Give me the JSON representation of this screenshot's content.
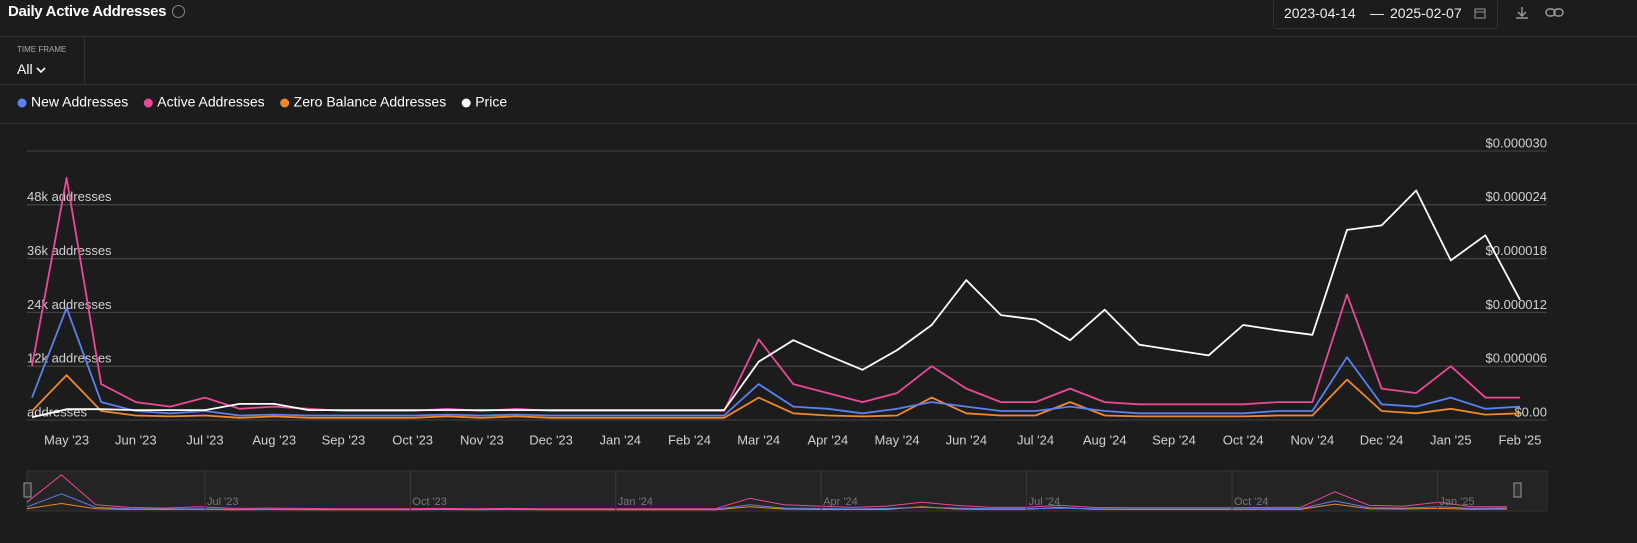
{
  "header": {
    "title": "Daily Active Addresses",
    "date_from": "2023-04-14",
    "date_sep": "—",
    "date_to": "2025-02-07"
  },
  "time_frame": {
    "label": "TIME FRAME",
    "value": "All"
  },
  "chart_data": {
    "type": "line",
    "categories": [
      null,
      "May '23",
      null,
      "Jun '23",
      null,
      "Jul '23",
      null,
      "Aug '23",
      null,
      "Sep '23",
      null,
      "Oct '23",
      null,
      "Nov '23",
      null,
      "Dec '23",
      null,
      "Jan '24",
      null,
      "Feb '24",
      null,
      "Mar '24",
      null,
      "Apr '24",
      null,
      "May '24",
      null,
      "Jun '24",
      null,
      "Jul '24",
      null,
      "Aug '24",
      null,
      "Sep '24",
      null,
      "Oct '24",
      null,
      "Nov '24",
      null,
      "Dec '24",
      null,
      "Jan '25",
      null,
      "Feb '25"
    ],
    "series": [
      {
        "name": "New Addresses",
        "color": "#5b80f0",
        "values": [
          5000,
          25000,
          4000,
          2000,
          1500,
          2000,
          1000,
          1200,
          1000,
          1000,
          1000,
          1000,
          1200,
          1000,
          1200,
          1000,
          1000,
          1000,
          1000,
          1000,
          1000,
          8000,
          3000,
          2500,
          1500,
          2500,
          4000,
          3000,
          2000,
          2000,
          3000,
          2000,
          1500,
          1500,
          1500,
          1500,
          2000,
          2000,
          14000,
          3500,
          3000,
          5000,
          2500,
          3000
        ]
      },
      {
        "name": "Active Addresses",
        "color": "#ec4899",
        "values": [
          12000,
          54000,
          8000,
          4000,
          3000,
          5000,
          2500,
          3000,
          2500,
          2000,
          2000,
          2000,
          2500,
          2000,
          2500,
          2000,
          2000,
          2000,
          2000,
          2000,
          2000,
          18000,
          8000,
          6000,
          4000,
          6000,
          12000,
          7000,
          4000,
          4000,
          7000,
          4000,
          3500,
          3500,
          3500,
          3500,
          4000,
          4000,
          28000,
          7000,
          6000,
          12000,
          5000,
          5000
        ]
      },
      {
        "name": "Zero Balance Addresses",
        "color": "#f0882a",
        "values": [
          2000,
          10000,
          2000,
          1000,
          800,
          1000,
          500,
          800,
          500,
          500,
          500,
          500,
          800,
          500,
          800,
          500,
          500,
          500,
          500,
          500,
          500,
          5000,
          1500,
          1000,
          800,
          1000,
          5000,
          1500,
          1000,
          1000,
          4000,
          1000,
          800,
          800,
          800,
          800,
          1000,
          1000,
          9000,
          2000,
          1500,
          2500,
          1200,
          1500
        ]
      },
      {
        "name": "Price",
        "color": "#ffffff",
        "axis": "y2",
        "values": [
          3e-07,
          1.2e-06,
          1.2e-06,
          1.1e-06,
          1.1e-06,
          1.1e-06,
          1.8e-06,
          1.8e-06,
          1.1e-06,
          1.1e-06,
          1.1e-06,
          1.1e-06,
          1.1e-06,
          1.1e-06,
          1.1e-06,
          1.1e-06,
          1.1e-06,
          1.1e-06,
          1.1e-06,
          1.1e-06,
          1.1e-06,
          6.5e-06,
          8.9e-06,
          7.2e-06,
          5.6e-06,
          7.8e-06,
          1.06e-05,
          1.56e-05,
          1.17e-05,
          1.12e-05,
          8.9e-06,
          1.23e-05,
          8.4e-06,
          7.8e-06,
          7.2e-06,
          1.06e-05,
          1e-05,
          9.5e-06,
          2.12e-05,
          2.17e-05,
          2.56e-05,
          1.78e-05,
          2.06e-05,
          1.34e-05
        ]
      }
    ],
    "ylim": [
      0,
      60000
    ],
    "yticks": [
      {
        "value": 0,
        "label": "addresses"
      },
      {
        "value": 12000,
        "label": "12k addresses"
      },
      {
        "value": 24000,
        "label": "24k addresses"
      },
      {
        "value": 36000,
        "label": "36k addresses"
      },
      {
        "value": 48000,
        "label": "48k addresses"
      }
    ],
    "y2lim": [
      0,
      3e-05
    ],
    "y2ticks": [
      {
        "value": 0,
        "label": "$0.00"
      },
      {
        "value": 6e-06,
        "label": "$0.000006"
      },
      {
        "value": 1.2e-05,
        "label": "$0.000012"
      },
      {
        "value": 1.8e-05,
        "label": "$0.000018"
      },
      {
        "value": 2.4e-05,
        "label": "$0.000024"
      },
      {
        "value": 3e-05,
        "label": "$0.000030"
      }
    ],
    "grid": true
  },
  "navigator": {
    "labels": [
      "Jul '23",
      "Oct '23",
      "Jan '24",
      "Apr '24",
      "Jul '24",
      "Oct '24",
      "Jan '25"
    ]
  }
}
